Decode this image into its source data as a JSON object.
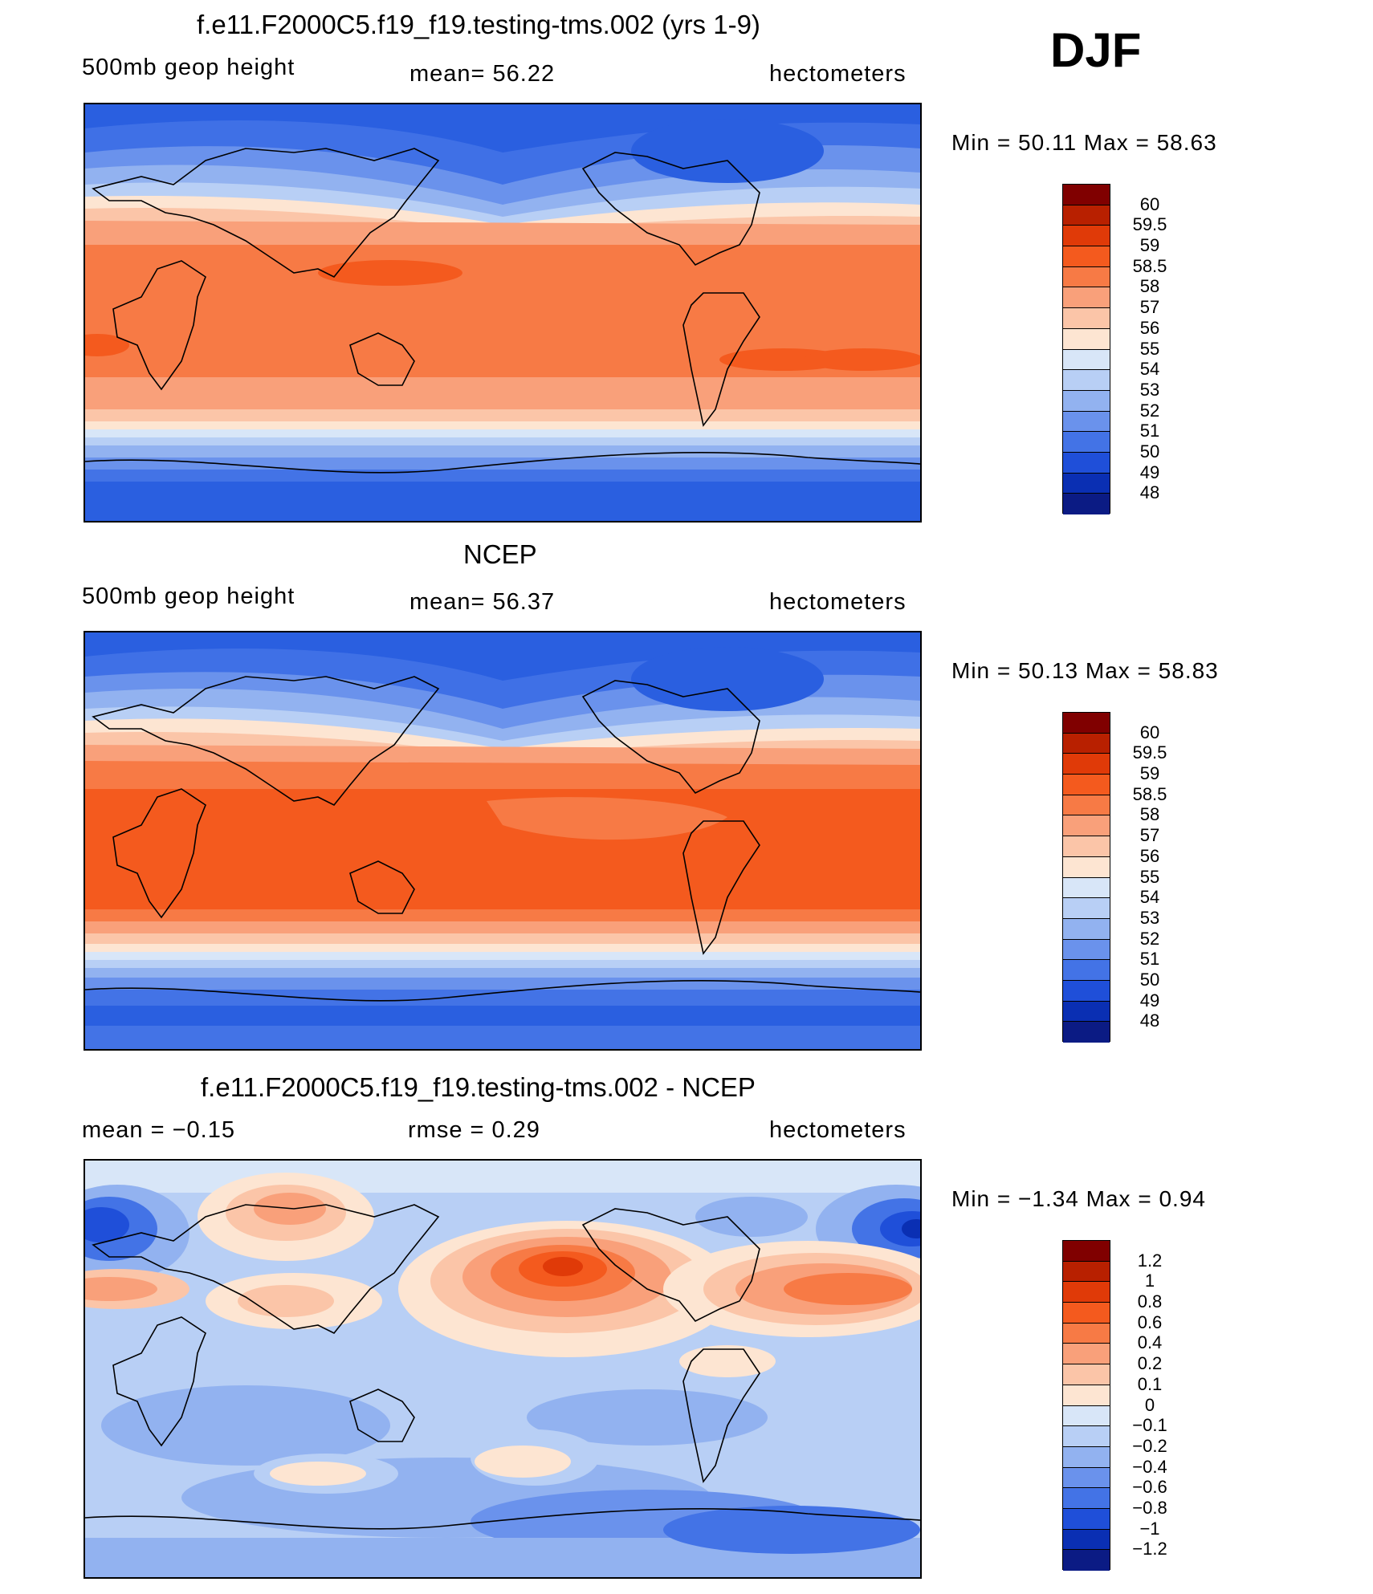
{
  "season": "DJF",
  "panels": [
    {
      "title": "f.e11.F2000C5.f19_f19.testing-tms.002 (yrs 1-9)",
      "left_label": "500mb  geop  height",
      "mid_label": "mean=   56.22",
      "right_label": "hectometers",
      "minmax": "Min  =    50.11  Max  =    58.63"
    },
    {
      "title": "NCEP",
      "left_label": "500mb  geop  height",
      "mid_label": "mean=   56.37",
      "right_label": "hectometers",
      "minmax": "Min  =    50.13  Max  =    58.83"
    },
    {
      "title": "f.e11.F2000C5.f19_f19.testing-tms.002 - NCEP",
      "left_label": "mean  =    −0.15",
      "mid_label": "rmse  =     0.29",
      "right_label": "hectometers",
      "minmax": "Min  =   −1.34  Max  =     0.94"
    }
  ],
  "chart_data": [
    {
      "type": "heatmap",
      "title": "f.e11.F2000C5.f19_f19.testing-tms.002 (yrs 1-9)",
      "variable": "500mb  geop  height",
      "units": "hectometers",
      "mean": 56.22,
      "min": 50.11,
      "max": 58.63,
      "colorbar_levels": [
        "60",
        "59.5",
        "59",
        "58.5",
        "58",
        "57",
        "56",
        "55",
        "54",
        "53",
        "52",
        "51",
        "50",
        "49",
        "48"
      ],
      "colorbar_colors": [
        "#800000",
        "#b82000",
        "#e03a08",
        "#f45a1e",
        "#f77a45",
        "#f9a07a",
        "#fbc5a8",
        "#fde5d2",
        "#d8e6f8",
        "#b8cff5",
        "#92b2f0",
        "#6a92ec",
        "#4373e6",
        "#1f4fd9",
        "#0a2fb3",
        "#0b1b84"
      ]
    },
    {
      "type": "heatmap",
      "title": "NCEP",
      "variable": "500mb  geop  height",
      "units": "hectometers",
      "mean": 56.37,
      "min": 50.13,
      "max": 58.83,
      "colorbar_levels": [
        "60",
        "59.5",
        "59",
        "58.5",
        "58",
        "57",
        "56",
        "55",
        "54",
        "53",
        "52",
        "51",
        "50",
        "49",
        "48"
      ],
      "colorbar_colors": [
        "#800000",
        "#b82000",
        "#e03a08",
        "#f45a1e",
        "#f77a45",
        "#f9a07a",
        "#fbc5a8",
        "#fde5d2",
        "#d8e6f8",
        "#b8cff5",
        "#92b2f0",
        "#6a92ec",
        "#4373e6",
        "#1f4fd9",
        "#0a2fb3",
        "#0b1b84"
      ]
    },
    {
      "type": "heatmap",
      "title": "f.e11.F2000C5.f19_f19.testing-tms.002 - NCEP",
      "units": "hectometers",
      "mean": -0.15,
      "rmse": 0.29,
      "min": -1.34,
      "max": 0.94,
      "colorbar_levels": [
        "1.2",
        "1",
        "0.8",
        "0.6",
        "0.4",
        "0.2",
        "0.1",
        "0",
        "−0.1",
        "−0.2",
        "−0.4",
        "−0.6",
        "−0.8",
        "−1",
        "−1.2"
      ],
      "colorbar_colors": [
        "#800000",
        "#b82000",
        "#e03a08",
        "#f45a1e",
        "#f77a45",
        "#f9a07a",
        "#fbc5a8",
        "#fde5d2",
        "#d8e6f8",
        "#b8cff5",
        "#92b2f0",
        "#6a92ec",
        "#4373e6",
        "#1f4fd9",
        "#0a2fb3",
        "#0b1b84"
      ]
    }
  ]
}
